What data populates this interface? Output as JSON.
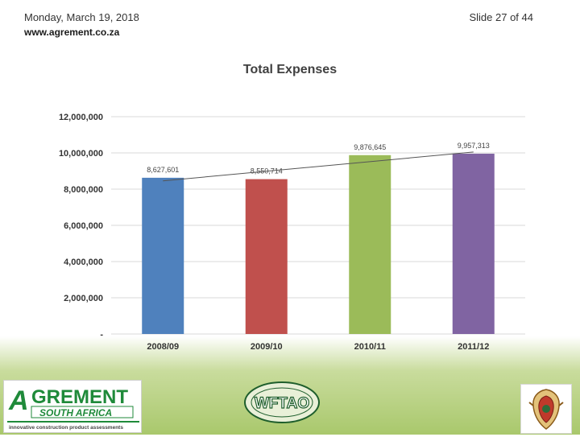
{
  "header": {
    "date": "Monday, March 19, 2018",
    "url": "www.agrement.co.za",
    "slide_number": "Slide 27 of 44"
  },
  "chart_data": {
    "type": "bar",
    "title": "Total Expenses",
    "categories": [
      "2008/09",
      "2009/10",
      "2010/11",
      "2011/12"
    ],
    "values": [
      8627601,
      8550714,
      9876645,
      9957313
    ],
    "data_labels": [
      "8,627,601",
      "8,550,714",
      "9,876,645",
      "9,957,313"
    ],
    "bar_colors": [
      "#4f81bd",
      "#c0504d",
      "#9bbb59",
      "#8064a2"
    ],
    "ylim": [
      0,
      12000000
    ],
    "yticks": [
      0,
      2000000,
      4000000,
      6000000,
      8000000,
      10000000,
      12000000
    ],
    "ytick_labels": [
      "-",
      "2,000,000",
      "4,000,000",
      "6,000,000",
      "8,000,000",
      "10,000,000",
      "12,000,000"
    ],
    "trendline": "linear",
    "grid": true,
    "legend": "none"
  },
  "footer": {
    "agrement_logo": {
      "word": "GREMENT",
      "initial": "A",
      "sub": "SOUTH AFRICA",
      "tagline": "innovative construction product assessments"
    },
    "wftao_logo": {
      "word": "WFTAO"
    },
    "crest_icon": "coat-of-arms-icon"
  }
}
